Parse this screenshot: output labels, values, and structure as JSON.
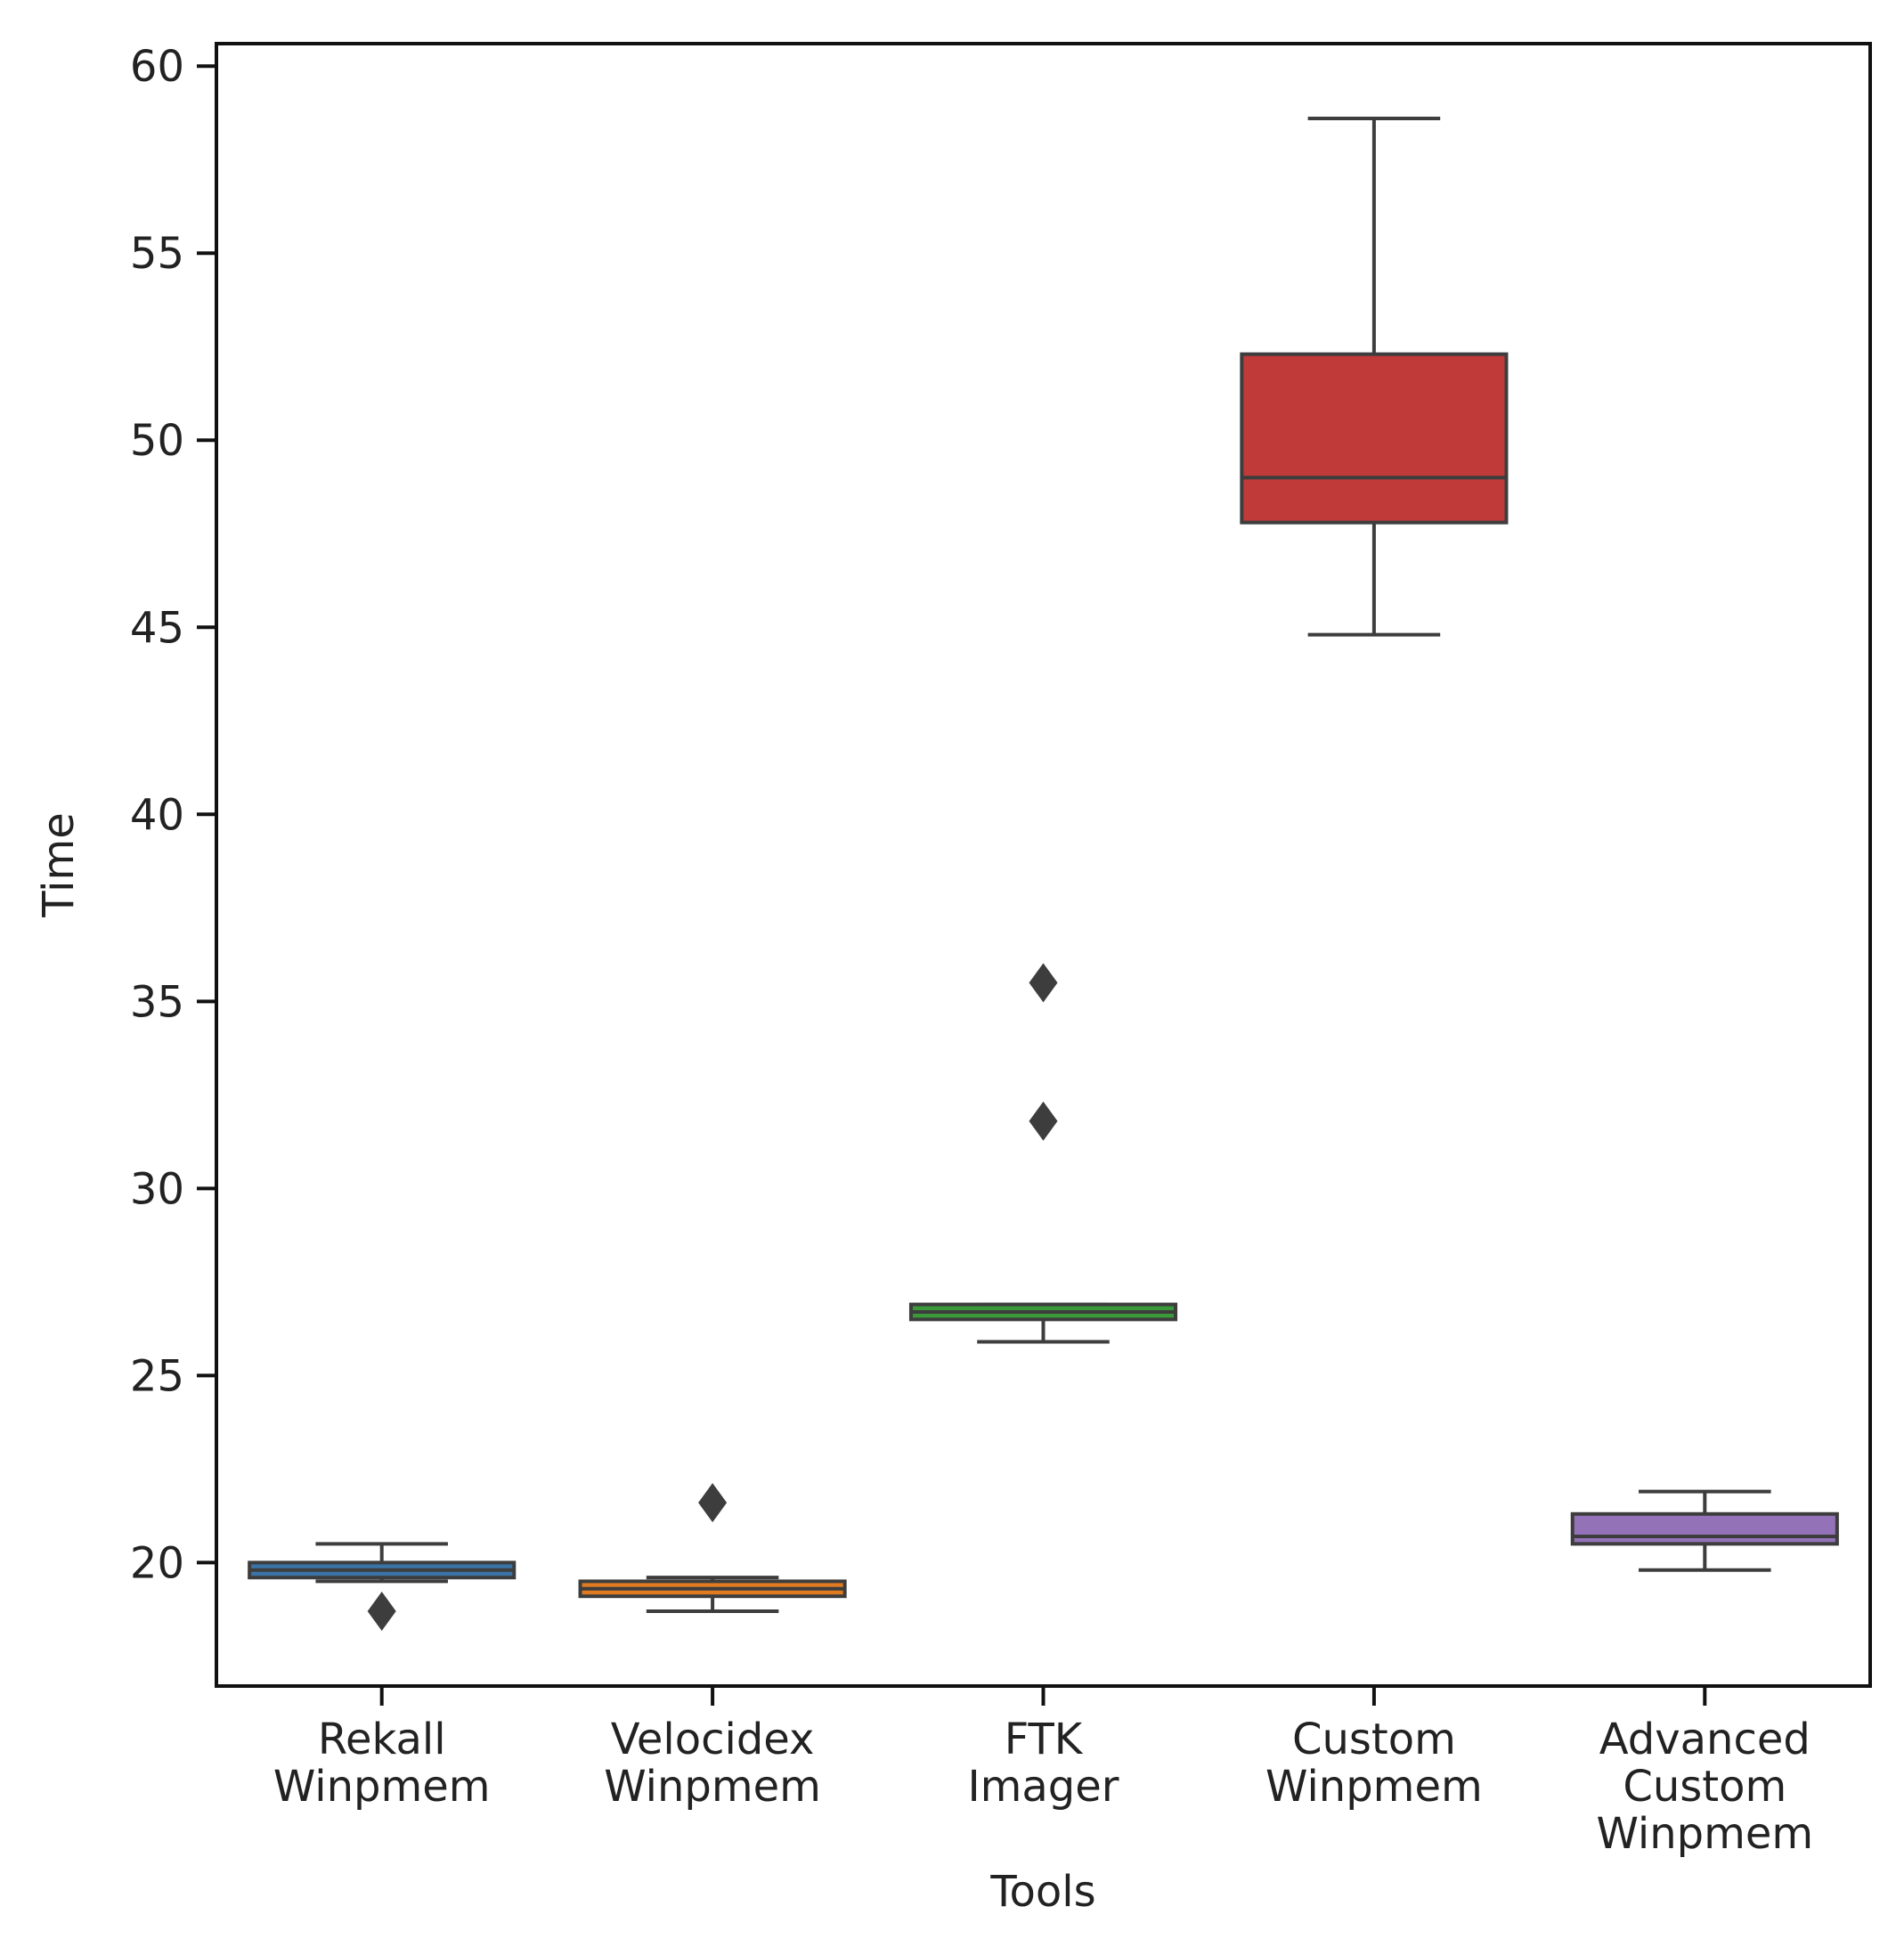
{
  "chart_data": {
    "type": "box",
    "title": "",
    "xlabel": "Tools",
    "ylabel": "Time",
    "ylim": [
      16.7,
      60.6
    ],
    "yticks": [
      20,
      25,
      30,
      35,
      40,
      45,
      50,
      55,
      60
    ],
    "grid": false,
    "legend": "none",
    "categories": [
      {
        "label_lines": [
          "Rekall",
          "Winpmem"
        ],
        "color": "#3a74a6",
        "whisker_low": 19.5,
        "q1": 19.6,
        "median": 19.8,
        "q3": 20.0,
        "whisker_high": 20.5,
        "outliers": [
          18.7
        ]
      },
      {
        "label_lines": [
          "Velocidex",
          "Winpmem"
        ],
        "color": "#e07b22",
        "whisker_low": 18.7,
        "q1": 19.1,
        "median": 19.3,
        "q3": 19.5,
        "whisker_high": 19.6,
        "outliers": [
          21.6
        ]
      },
      {
        "label_lines": [
          "FTK",
          "Imager"
        ],
        "color": "#3a9a3a",
        "whisker_low": 25.9,
        "q1": 26.5,
        "median": 26.7,
        "q3": 26.9,
        "whisker_high": 26.9,
        "outliers": [
          31.8,
          35.5
        ]
      },
      {
        "label_lines": [
          "Custom",
          "Winpmem"
        ],
        "color": "#c03a3a",
        "whisker_low": 44.8,
        "q1": 47.8,
        "median": 49.0,
        "q3": 52.3,
        "whisker_high": 58.6,
        "outliers": []
      },
      {
        "label_lines": [
          "Advanced",
          "Custom",
          "Winpmem"
        ],
        "color": "#9472b8",
        "whisker_low": 19.8,
        "q1": 20.5,
        "median": 20.7,
        "q3": 21.3,
        "whisker_high": 21.9,
        "outliers": []
      }
    ]
  }
}
